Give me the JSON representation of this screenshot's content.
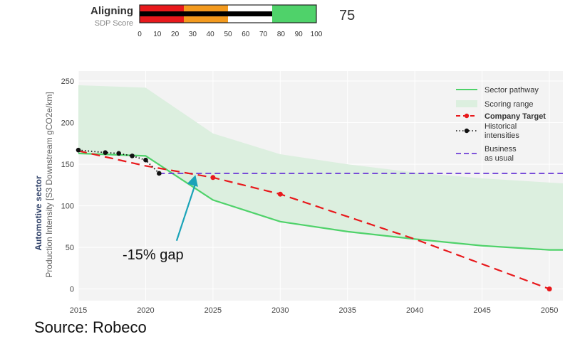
{
  "gauge": {
    "title": "Aligning",
    "subtitle": "SDP Score",
    "score": "75",
    "ticks": [
      "0",
      "10",
      "20",
      "30",
      "40",
      "50",
      "60",
      "70",
      "80",
      "90",
      "100"
    ],
    "tick_values": [
      0,
      10,
      20,
      30,
      40,
      50,
      60,
      70,
      80,
      90,
      100
    ],
    "bands": [
      {
        "from": 0,
        "to": 25,
        "color": "#e8191c"
      },
      {
        "from": 25,
        "to": 50,
        "color": "#f39a1e"
      },
      {
        "from": 50,
        "to": 75,
        "color": "#ffffff"
      },
      {
        "from": 75,
        "to": 100,
        "color": "#4fd26a"
      }
    ],
    "value": 75
  },
  "chart_data": {
    "type": "line",
    "xlabel": "",
    "ylabel_line1": "Automotive sector",
    "ylabel_line2": "Production Intensity [S3 Downstream gCO2e/km]",
    "xlim": [
      2015,
      2051
    ],
    "ylim": [
      -14,
      262
    ],
    "x_ticks": [
      2015,
      2020,
      2025,
      2030,
      2035,
      2040,
      2045,
      2050
    ],
    "x_tick_labels": [
      "2015",
      "2020",
      "2025",
      "2030",
      "2035",
      "2040",
      "2045",
      "2050"
    ],
    "y_ticks": [
      0,
      50,
      100,
      150,
      200,
      250
    ],
    "y_tick_labels": [
      "0",
      "50",
      "100",
      "150",
      "200",
      "250"
    ],
    "series": [
      {
        "name": "Scoring range",
        "kind": "band",
        "color": "#dcefdf",
        "x": [
          2015,
          2020,
          2025,
          2030,
          2035,
          2040,
          2045,
          2050,
          2051
        ],
        "upper": [
          245,
          242,
          187,
          162,
          150,
          140,
          133,
          128,
          127
        ],
        "lower": [
          163,
          160,
          107,
          81,
          69,
          60,
          52,
          47,
          47
        ]
      },
      {
        "name": "Sector pathway",
        "kind": "line",
        "color": "#4fd26a",
        "x": [
          2015,
          2020,
          2025,
          2030,
          2035,
          2040,
          2045,
          2050,
          2051
        ],
        "y": [
          163,
          160,
          107,
          81,
          69,
          60,
          52,
          47,
          47
        ]
      },
      {
        "name": "Business as usual",
        "kind": "dash",
        "color": "#6f3fd6",
        "x": [
          2021,
          2051
        ],
        "y": [
          139,
          139
        ]
      },
      {
        "name": "Company Target",
        "kind": "dash-markers",
        "color": "#e8191c",
        "x": [
          2015,
          2020,
          2025,
          2030,
          2040,
          2050
        ],
        "y": [
          166,
          148,
          134,
          114,
          60,
          0
        ],
        "markers_x": [
          2025,
          2030,
          2050
        ],
        "markers_y": [
          134,
          114,
          0
        ]
      },
      {
        "name": "Historical intensities",
        "kind": "dot-markers",
        "color": "#111111",
        "x": [
          2015,
          2017,
          2018,
          2019,
          2020,
          2021
        ],
        "y": [
          167,
          164,
          163,
          160,
          155,
          139
        ]
      }
    ],
    "legend": [
      {
        "label": "Sector pathway",
        "style": "line",
        "color": "#4fd26a"
      },
      {
        "label": "Scoring range",
        "style": "band",
        "color": "#dcefdf"
      },
      {
        "label": "Company Target",
        "style": "target",
        "color": "#e8191c",
        "bold": true
      },
      {
        "label": "Historical",
        "label2": "intensities",
        "style": "historical",
        "color": "#111111"
      },
      {
        "label": "Business",
        "label2": "as usual",
        "style": "bau",
        "color": "#6f3fd6"
      }
    ],
    "annotation": {
      "text": "-15% gap",
      "arrow_from": [
        2022.3,
        58
      ],
      "arrow_to": [
        2023.7,
        137
      ]
    }
  },
  "source": {
    "prefix": "Source:",
    "name": " Robeco"
  }
}
